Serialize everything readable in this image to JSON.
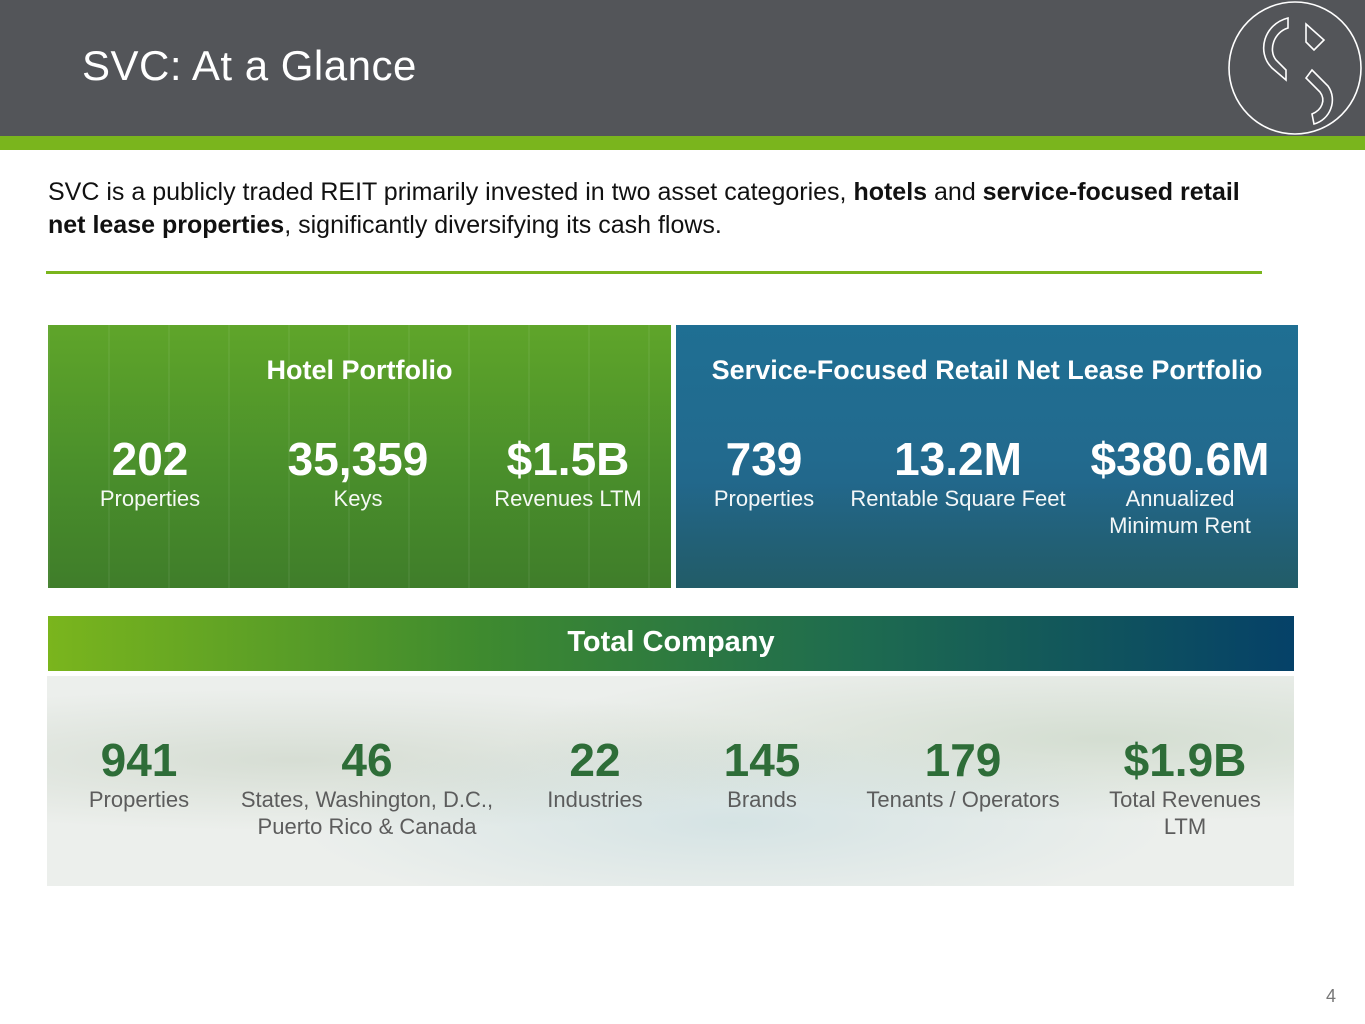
{
  "header": {
    "title": "SVC: At a Glance",
    "bg_color": "#535559",
    "accent_color": "#7ab51d",
    "logo_icon": "svc-logo-icon"
  },
  "intro": {
    "part1": "SVC is a publicly traded REIT primarily invested in two asset categories, ",
    "bold1": "hotels",
    "part2": " and ",
    "bold2": "service-focused retail net lease properties",
    "part3": ", significantly diversifying its cash flows."
  },
  "hotel": {
    "title": "Hotel Portfolio",
    "stats": [
      {
        "value": "202",
        "label": "Properties"
      },
      {
        "value": "35,359",
        "label": "Keys"
      },
      {
        "value": "$1.5B",
        "label": "Revenues LTM"
      }
    ]
  },
  "retail": {
    "title": "Service-Focused Retail Net Lease Portfolio",
    "stats": [
      {
        "value": "739",
        "label": "Properties"
      },
      {
        "value": "13.2M",
        "label": "Rentable Square Feet"
      },
      {
        "value": "$380.6M",
        "label": "Annualized",
        "label2": "Minimum Rent"
      }
    ]
  },
  "total": {
    "title": "Total Company",
    "stats": [
      {
        "value": "941",
        "label": "Properties"
      },
      {
        "value": "46",
        "label": "States, Washington, D.C.,",
        "label2": "Puerto Rico & Canada"
      },
      {
        "value": "22",
        "label": "Industries"
      },
      {
        "value": "145",
        "label": "Brands"
      },
      {
        "value": "179",
        "label": "Tenants / Operators"
      },
      {
        "value": "$1.9B",
        "label": "Total Revenues",
        "label2": "LTM"
      }
    ]
  },
  "page_number": "4"
}
